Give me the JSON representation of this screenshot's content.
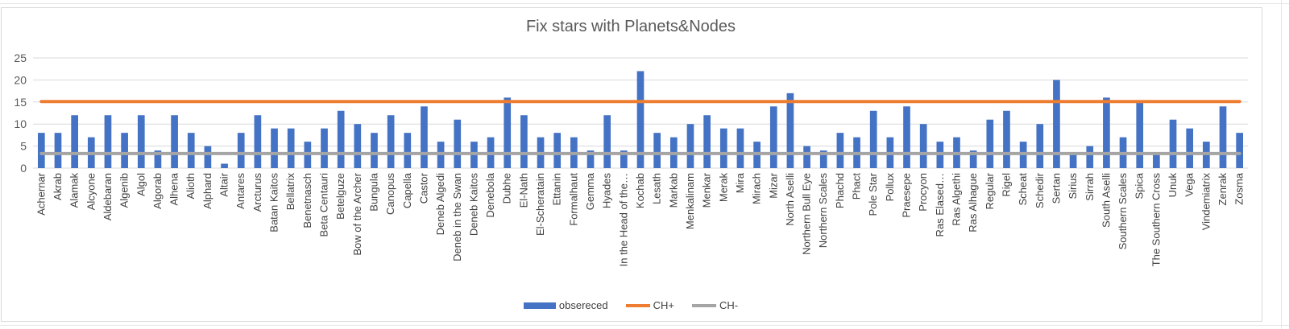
{
  "chart_data": {
    "type": "bar",
    "title": "Fix stars with Planets&Nodes",
    "xlabel": "",
    "ylabel": "",
    "ylim": [
      0,
      25
    ],
    "yticks": [
      0,
      5,
      10,
      15,
      20,
      25
    ],
    "grid": true,
    "legend_position": "bottom",
    "categories": [
      "Achernar",
      "Akrab",
      "Alamak",
      "Alcyone",
      "Aldebaran",
      "Algenib",
      "Algol",
      "Algorab",
      "Alhena",
      "Alioth",
      "Alphard",
      "Altair",
      "Antares",
      "Arcturus",
      "Batan Kaitos",
      "Bellatrix",
      "Benetnasch",
      "Beta Centauri",
      "Betelguze",
      "Bow of the Archer",
      "Bungula",
      "Canopus",
      "Capella",
      "Castor",
      "Deneb Algedi",
      "Deneb in the Swan",
      "Deneb Kaitos",
      "Denebola",
      "Dubhe",
      "El-Nath",
      "El-Scheratain",
      "Ettanin",
      "Formalhaut",
      "Gemma",
      "Hyades",
      "In the Head of the…",
      "Kochab",
      "Lesath",
      "Markab",
      "Menkalinam",
      "Menkar",
      "Merak",
      "Mira",
      "Mirach",
      "Mizar",
      "North Aselli",
      "Northern Bull Eye",
      "Northern Scales",
      "Phachd",
      "Phact",
      "Pole Star",
      "Pollux",
      "Praesepe",
      "Procyon",
      "Ras Elased…",
      "Ras Algethi",
      "Ras Alhague",
      "Regular",
      "Rigel",
      "Scheat",
      "Schedir",
      "Sertan",
      "Sirius",
      "Sirrah",
      "South Aselli",
      "Southern Scales",
      "Spica",
      "The Southern Cross",
      "Unuk",
      "Vega",
      "Vindemiatrix",
      "Zenrak",
      "Zosma"
    ],
    "series": [
      {
        "name": "obsereced",
        "type": "bar",
        "color": "#4472C4",
        "values": [
          8,
          8,
          12,
          7,
          12,
          8,
          12,
          4,
          12,
          8,
          5,
          1,
          8,
          12,
          9,
          9,
          6,
          9,
          13,
          10,
          8,
          12,
          8,
          14,
          6,
          11,
          6,
          7,
          16,
          12,
          7,
          8,
          7,
          4,
          12,
          4,
          22,
          8,
          7,
          10,
          12,
          9,
          9,
          6,
          14,
          17,
          5,
          4,
          8,
          7,
          13,
          7,
          14,
          10,
          6,
          7,
          4,
          11,
          13,
          6,
          10,
          20,
          3,
          5,
          16,
          7,
          15,
          3,
          11,
          9,
          6,
          14,
          8
        ]
      },
      {
        "name": "CH+",
        "type": "line",
        "color": "#ED7D31",
        "value": 15.1
      },
      {
        "name": "CH-",
        "type": "line",
        "color": "#A5A5A5",
        "value": 3.3
      }
    ]
  }
}
